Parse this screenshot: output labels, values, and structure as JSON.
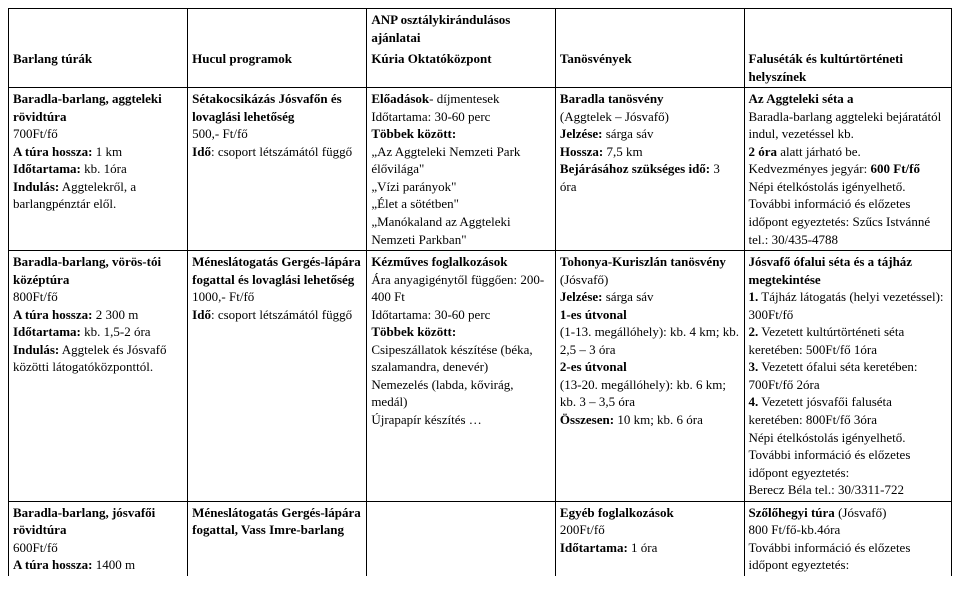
{
  "table": {
    "anp_title": "ANP osztálykirándulásos ajánlatai",
    "headers": {
      "c1": "Barlang túrák",
      "c2": "Hucul programok",
      "c3": "Kúria Oktatóközpont",
      "c4": "Tanösvények",
      "c5": "Faluséták és kultúrtörténeti helyszínek"
    },
    "r1": {
      "c1": {
        "title": "Baradla-barlang, aggteleki rövidtúra",
        "price": "700Ft/fő",
        "len_lbl": "A túra hossza:",
        "len_val": " 1 km",
        "dur_lbl": "Időtartama:",
        "dur_val": " kb. 1óra",
        "start_lbl": "Indulás:",
        "start_val": " Aggtelekről, a barlangpénztár elől."
      },
      "c2": {
        "title": "Sétakocsikázás Jósvafőn és lovaglási lehetőség",
        "price": "500,- Ft/fő",
        "time_lbl": "Idő",
        "time_val": ": csoport létszámától függő"
      },
      "c3": {
        "title": "Előadások",
        "title_suffix": "- díjmentesek",
        "dur": "Időtartama: 30-60 perc",
        "among_lbl": "Többek között:",
        "i1": "„Az Aggteleki Nemzeti Park élővilága\"",
        "i2": "„Vízi parányok\"",
        "i3": "„Élet a sötétben\"",
        "i4": "„Manókaland az Aggteleki Nemzeti Parkban\""
      },
      "c4": {
        "title": "Baradla tanösvény",
        "sub": "(Aggtelek – Jósvafő)",
        "mark_lbl": "Jelzése:",
        "mark_val": " sárga sáv",
        "len_lbl": "Hossza:",
        "len_val": " 7,5 km",
        "walk_lbl": "Bejárásához szükséges idő:",
        "walk_val": " 3 óra"
      },
      "c5": {
        "title": "Az Aggteleki séta a",
        "l1": "Baradla-barlang aggteleki bejáratától indul, vezetéssel kb.",
        "l2_b": "2 óra",
        "l2_r": " alatt járható be.",
        "l3a": "Kedvezményes jegyár: ",
        "l3b": "600 Ft/fő",
        "l4": "Népi ételkóstolás igényelhető.",
        "l5": "További információ és előzetes időpont egyeztetés: Szűcs Istvánné tel.: 30/435-4788"
      }
    },
    "r2": {
      "c1": {
        "title": "Baradla-barlang, vörös-tói középtúra",
        "price": "800Ft/fő",
        "len_lbl": "A túra hossza:",
        "len_val": " 2 300 m",
        "dur_lbl": "Időtartama:",
        "dur_val": " kb. 1,5-2 óra",
        "start_lbl": "Indulás:",
        "start_val": " Aggtelek és Jósvafő közötti látogatóközponttól."
      },
      "c2": {
        "title": "Méneslátogatás Gergés-lápára fogattal és lovaglási lehetőség",
        "price": "1000,- Ft/fő",
        "time_lbl": "Idő",
        "time_val": ": csoport létszámától függő"
      },
      "c3": {
        "title": "Kézműves foglalkozások",
        "p1": "Ára anyagigénytől függően: 200-400 Ft",
        "dur": "Időtartama: 30-60 perc",
        "among_lbl": "Többek között:",
        "i1": "Csipeszállatok készítése (béka, szalamandra, denevér)",
        "i2": "Nemezelés (labda, kővirág, medál)",
        "i3": "Újrapapír készítés …"
      },
      "c4": {
        "title_a": "Tohonya-Kuriszlán tanösvény",
        "title_b": " (Jósvafő)",
        "mark_lbl": "Jelzése:",
        "mark_val": " sárga sáv",
        "r1_b": "1-es útvonal",
        "r1_t": " (1-13. megállóhely): kb. 4 km; kb. 2,5 – 3 óra",
        "r2_b": "2-es útvonal",
        "r2_t": " (13-20. megállóhely): kb. 6 km; kb. 3 – 3,5 óra",
        "sum_lbl": "Összesen:",
        "sum_val": " 10 km; kb. 6 óra"
      },
      "c5": {
        "title": "Jósvafő ófalui séta és a tájház megtekintése",
        "n1_b": "1.",
        "n1_r": " Tájház látogatás (helyi vezetéssel): 300Ft/fő",
        "n2_b": "2.",
        "n2_r": " Vezetett kultúrtörténeti séta keretében: 500Ft/fő 1óra",
        "n3_b": "3.",
        "n3_r": " Vezetett ófalui séta keretében: 700Ft/fő 2óra",
        "n4_b": "4.",
        "n4_r": " Vezetett jósvafői faluséta keretében: 800Ft/fő 3óra",
        "l4": "Népi ételkóstolás igényelhető.",
        "l5": "További információ és előzetes időpont egyeztetés:",
        "l6": "Berecz Béla tel.: 30/3311-722"
      }
    },
    "r3": {
      "c1": {
        "title": "Baradla-barlang, jósvafői rövidtúra",
        "price": "600Ft/fő",
        "len_lbl": "A túra hossza:",
        "len_val": " 1400 m"
      },
      "c2": {
        "title": "Méneslátogatás Gergés-lápára fogattal, Vass Imre-barlang"
      },
      "c3": "",
      "c4": {
        "title": "Egyéb foglalkozások",
        "price": "200Ft/fő",
        "dur_lbl": "Időtartama:",
        "dur_val": " 1 óra"
      },
      "c5": {
        "title_a": "Szőlőhegyi túra",
        "title_b": " (Jósvafő)",
        "price": "800 Ft/fő-kb.4óra",
        "l1": "További információ és előzetes időpont egyeztetés:"
      }
    }
  }
}
